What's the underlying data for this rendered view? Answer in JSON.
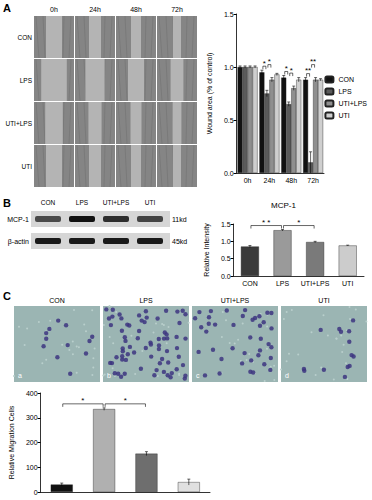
{
  "figure": {
    "panel_labels": [
      "A",
      "B",
      "C"
    ],
    "wound_images": {
      "timepoints": [
        "0h",
        "24h",
        "48h",
        "72h"
      ],
      "groups": [
        "CON",
        "LPS",
        "UTI+LPS",
        "UTI"
      ]
    },
    "western_blot": {
      "lanes": [
        "CON",
        "LPS",
        "UTI+LPS",
        "UTI"
      ],
      "bands": [
        {
          "protein": "MCP-1",
          "size": "11kd"
        },
        {
          "protein": "β-actin",
          "size": "45kd"
        }
      ]
    },
    "transwell_images": [
      {
        "group": "CON",
        "letter": "a"
      },
      {
        "group": "LPS",
        "letter": "b"
      },
      {
        "group": "UTI+LPS",
        "letter": "c"
      },
      {
        "group": "UTI",
        "letter": "d"
      }
    ]
  },
  "chart_data": [
    {
      "type": "bar",
      "ylabel": "Wound area (% of control)",
      "categories": [
        "0h",
        "24h",
        "48h",
        "72h"
      ],
      "series": [
        {
          "name": "CON",
          "color": "#111111",
          "values": [
            1,
            0.95,
            0.9,
            0.88
          ],
          "errors": [
            0.01,
            0.02,
            0.02,
            0.02
          ]
        },
        {
          "name": "LPS",
          "color": "#5a5a5a",
          "values": [
            1,
            0.75,
            0.65,
            0.1
          ],
          "errors": [
            0.01,
            0.03,
            0.02,
            0.1
          ]
        },
        {
          "name": "UTI+LPS",
          "color": "#8f8f8f",
          "values": [
            1,
            0.88,
            0.8,
            0.88
          ],
          "errors": [
            0.01,
            0.02,
            0.02,
            0.02
          ]
        },
        {
          "name": "UTI",
          "color": "#cfcfcf",
          "values": [
            1,
            0.93,
            0.88,
            0.88
          ],
          "errors": [
            0.01,
            0.01,
            0.02,
            0.01
          ]
        }
      ],
      "ylim": [
        0,
        1.5
      ],
      "yticks": [
        {
          "value": 0,
          "label": "0.0"
        },
        0.5,
        {
          "value": 1,
          "label": "1.0"
        },
        1.5
      ],
      "grid": false,
      "legend": "right",
      "annotations": [
        {
          "category": "24h",
          "between": [
            0,
            1
          ],
          "text": "*"
        },
        {
          "category": "24h",
          "between": [
            1,
            2
          ],
          "text": "*"
        },
        {
          "category": "48h",
          "between": [
            0,
            1
          ],
          "text": "*"
        },
        {
          "category": "48h",
          "between": [
            1,
            2
          ],
          "text": "*"
        },
        {
          "category": "72h",
          "between": [
            0,
            1
          ],
          "text": "**"
        },
        {
          "category": "72h",
          "between": [
            1,
            2
          ],
          "text": "**"
        }
      ]
    },
    {
      "type": "bar",
      "title": "MCP-1",
      "ylabel": "Relative Intensity",
      "categories": [
        "CON",
        "LPS",
        "UTI+LPS",
        "UTI"
      ],
      "values": [
        0.85,
        1.32,
        0.98,
        0.88
      ],
      "errors": [
        0.03,
        0.02,
        0.02,
        0.01
      ],
      "colors": [
        "#3a3a3a",
        "#9a9a9a",
        "#7a7a7a",
        "#cccccc"
      ],
      "ylim": [
        0,
        1.5
      ],
      "yticks": [
        {
          "value": 0,
          "label": "0.0"
        },
        0.5,
        {
          "value": 1,
          "label": "1.0"
        },
        1.5
      ],
      "grid": false,
      "annotations": [
        {
          "between": [
            0,
            1
          ],
          "text": "* *"
        },
        {
          "between": [
            1,
            2
          ],
          "text": "*"
        }
      ]
    },
    {
      "type": "bar",
      "ylabel": "Relative Migration Cells",
      "categories": [
        null,
        null,
        null,
        null
      ],
      "values": [
        30,
        335,
        155,
        40
      ],
      "errors": [
        6,
        5,
        8,
        12
      ],
      "colors": [
        "#111111",
        "#b0b0b0",
        "#6e6e6e",
        "#e0e0e0"
      ],
      "ylim": [
        0,
        400
      ],
      "yticks": [
        0,
        100,
        200,
        300,
        400
      ],
      "grid": false,
      "annotations": [
        {
          "between": [
            0,
            1
          ],
          "text": "*"
        },
        {
          "between": [
            1,
            2
          ],
          "text": "*"
        }
      ]
    }
  ]
}
